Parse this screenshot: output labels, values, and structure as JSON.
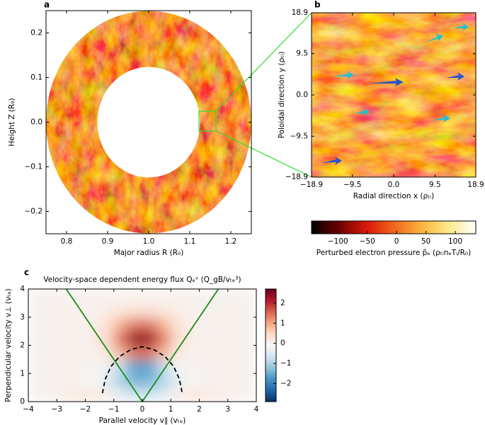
{
  "chart_data": [
    {
      "type": "image",
      "panel_label": "a",
      "xlabel": "Major radius R (R₀)",
      "ylabel": "Height Z (R₀)",
      "xlim": [
        0.75,
        1.25
      ],
      "ylim": [
        -0.25,
        0.25
      ],
      "xticks": [
        0.8,
        0.9,
        {
          "value": 1,
          "label": "1.0"
        },
        1.1,
        1.2
      ],
      "yticks": [
        {
          "value": -0.2,
          "label": "−0.2"
        },
        {
          "value": -0.1,
          "label": "−0.1"
        },
        {
          "value": 0,
          "label": "0.0"
        },
        0.1,
        0.2
      ]
    },
    {
      "type": "image",
      "panel_label": "b",
      "xlabel": "Radial direction x (ρₜᵢ)",
      "ylabel": "Poloidal direction y (ρₜᵢ)",
      "xlim": [
        -18.9,
        18.9
      ],
      "ylim": [
        -18.9,
        18.9
      ],
      "xticks": [
        {
          "value": -18.9,
          "label": "−18.9"
        },
        {
          "value": -9.5,
          "label": "−9.5"
        },
        {
          "value": 0,
          "label": "0.0"
        },
        9.5,
        18.9
      ],
      "yticks": [
        {
          "value": -18.9,
          "label": "−18.9"
        },
        {
          "value": -9.5,
          "label": "−9.5"
        },
        {
          "value": 0,
          "label": "0.0"
        },
        9.5,
        18.9
      ],
      "colorbar": {
        "label": "Perturbed electron pressure p̃ₑ (ρₜᵢnₑTᵢ/R₀)",
        "clim": [
          -145,
          135
        ],
        "ticks": [
          {
            "value": -100,
            "label": "−100"
          },
          {
            "value": -50,
            "label": "−50"
          },
          0,
          50,
          100
        ],
        "colormap": [
          "#000000",
          "#6e0000",
          "#d8180a",
          "#f0661c",
          "#f9b43a",
          "#fde98a",
          "#ffffff"
        ]
      }
    },
    {
      "type": "heatmap",
      "panel_label": "c",
      "title": "Velocity-space dependent energy flux Qₑᵛ (Q_gB/vₜₑ³)",
      "xlabel": "Parallel velocity v∥ (vₜₑ)",
      "ylabel": "Perpendicular velocity v⊥ (vₜₑ)",
      "xlim": [
        -4,
        4
      ],
      "ylim": [
        0,
        4
      ],
      "xticks": [
        {
          "value": -4,
          "label": "−4"
        },
        {
          "value": -3,
          "label": "−3"
        },
        {
          "value": -2,
          "label": "−2"
        },
        {
          "value": -1,
          "label": "−1"
        },
        0,
        1,
        2,
        3,
        4
      ],
      "yticks": [
        0,
        1,
        2,
        3,
        4
      ],
      "x": [
        -3.75,
        -3.25,
        -2.75,
        -2.25,
        -1.75,
        -1.25,
        -0.75,
        -0.25,
        0.25,
        0.75,
        1.25,
        1.75,
        2.25,
        2.75,
        3.25,
        3.75
      ],
      "y": [
        0.25,
        0.75,
        1.25,
        1.75,
        2.25,
        2.75,
        3.25,
        3.75
      ],
      "z": [
        [
          0,
          0,
          0.1,
          0.2,
          0.2,
          0.1,
          -0.4,
          -0.6,
          -0.6,
          -0.4,
          0.1,
          0.2,
          0.2,
          0.1,
          0,
          0
        ],
        [
          0,
          0,
          0,
          0,
          -0.1,
          -0.4,
          -1.0,
          -1.4,
          -1.4,
          -1.0,
          -0.4,
          -0.1,
          0,
          0,
          0,
          0
        ],
        [
          0,
          0,
          0,
          0,
          0,
          -0.2,
          -0.8,
          -1.6,
          -1.6,
          -0.8,
          -0.2,
          0,
          0,
          0,
          0,
          0
        ],
        [
          0,
          0,
          0,
          0,
          0,
          0.2,
          0.8,
          1.4,
          1.4,
          0.8,
          0.2,
          0,
          0,
          0,
          0,
          0
        ],
        [
          0,
          0,
          0,
          0,
          0.1,
          0.4,
          1.4,
          2.4,
          2.4,
          1.4,
          0.4,
          0.1,
          0,
          0,
          0,
          0
        ],
        [
          0,
          0,
          0,
          0,
          0.1,
          0.3,
          0.9,
          1.4,
          1.4,
          0.9,
          0.3,
          0.1,
          0,
          0,
          0,
          0
        ],
        [
          0,
          0,
          0,
          0,
          0,
          0.1,
          0.2,
          0.3,
          0.3,
          0.2,
          0.1,
          0,
          0,
          0,
          0,
          0
        ],
        [
          0,
          0,
          0,
          0,
          0,
          0,
          0,
          0,
          0,
          0,
          0,
          0,
          0,
          0,
          0,
          0
        ]
      ],
      "colorbar": {
        "clim": [
          -2.9,
          2.7
        ],
        "ticks": [
          {
            "value": -2,
            "label": "−2"
          },
          {
            "value": -1,
            "label": "−1"
          },
          0,
          1,
          2
        ],
        "colormap": [
          "#053061",
          "#2166ac",
          "#4393c3",
          "#92c5de",
          "#d1e5f0",
          "#f7f7f7",
          "#fddbc7",
          "#f4a582",
          "#d6604d",
          "#b2182b",
          "#67001f"
        ]
      },
      "lines": [
        {
          "color": "#1e8c1e",
          "style": "solid",
          "x": [
            -2.67,
            0,
            2.67
          ],
          "y": [
            4,
            0,
            4
          ]
        },
        {
          "color": "#000000",
          "style": "dashed",
          "x": [
            -1.4,
            -1.3,
            -1.1,
            -0.8,
            -0.4,
            0,
            0.4,
            0.8,
            1.1,
            1.3,
            1.4
          ],
          "y": [
            0.3,
            0.8,
            1.25,
            1.6,
            1.85,
            1.95,
            1.85,
            1.6,
            1.25,
            0.8,
            0.3
          ]
        }
      ]
    }
  ]
}
